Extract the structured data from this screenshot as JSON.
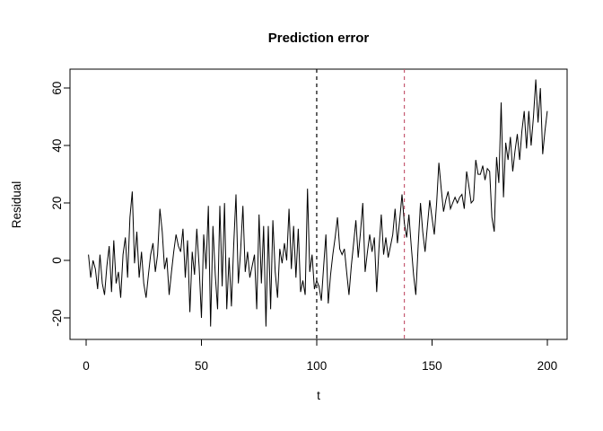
{
  "chart_data": {
    "type": "line",
    "title": "Prediction error",
    "xlabel": "t",
    "ylabel": "Residual",
    "x_ticks": [
      0,
      50,
      100,
      150,
      200
    ],
    "y_ticks": [
      -20,
      0,
      20,
      40,
      60
    ],
    "xlim": [
      -7.0,
      208.6
    ],
    "ylim": [
      -27.5,
      66.6
    ],
    "grid": false,
    "legend": null,
    "line_color": "#000000",
    "series": [
      {
        "name": "residuals",
        "color": "#000000",
        "x_start": 1,
        "x_step": 1,
        "values": [
          2,
          -6,
          0,
          -3,
          -10,
          2,
          -8,
          -12,
          -2,
          5,
          -11,
          7,
          -8,
          -4,
          -13,
          2,
          8,
          -6,
          15,
          24,
          -1,
          10,
          -6,
          3,
          -8,
          -13,
          -5,
          2,
          6,
          -4,
          2,
          18,
          10,
          -3,
          1,
          -12,
          -4,
          3,
          9,
          5,
          3,
          11,
          -6,
          7,
          -18,
          3,
          -5,
          11,
          -2,
          -20,
          9,
          -3,
          19,
          -23,
          12,
          -5,
          -17,
          19,
          -9,
          20,
          -17,
          1,
          -16,
          5,
          23,
          -8,
          3,
          19,
          -4,
          3,
          -6,
          -2,
          2,
          -17,
          16,
          -8,
          12,
          -23,
          12,
          -17,
          14,
          -4,
          -13,
          4,
          -1,
          6,
          0,
          18,
          -3,
          12,
          -6,
          11,
          -11,
          -7,
          -12,
          25,
          -4,
          2,
          -10,
          -7,
          -9,
          -14,
          -2,
          9,
          -15,
          -5,
          2,
          8,
          15,
          4,
          2,
          4,
          -4,
          -12,
          -2,
          6,
          14,
          1,
          10,
          20,
          -4,
          3,
          9,
          3,
          8,
          -11,
          4,
          16,
          2,
          8,
          1,
          5,
          9,
          18,
          6,
          14,
          23,
          13,
          8,
          16,
          5,
          -5,
          -12,
          5,
          20,
          10,
          3,
          12,
          21,
          15,
          9,
          20,
          34,
          25,
          17,
          21,
          24,
          18,
          20,
          22,
          20,
          22,
          23,
          18,
          31,
          26,
          20,
          21,
          35,
          30,
          30,
          33,
          28,
          32,
          31,
          15,
          10,
          36,
          27,
          55,
          22,
          41,
          35,
          43,
          31,
          38,
          44,
          35,
          45,
          52,
          39,
          52,
          40,
          50,
          63,
          48,
          60,
          37,
          45,
          52
        ]
      }
    ],
    "vlines": [
      {
        "x": 100,
        "color": "#000000",
        "style": "dashed",
        "name": "vline-t100-black-dashed"
      },
      {
        "x": 138,
        "color": "#C65B72",
        "style": "dashed",
        "name": "vline-t138-pink-dashed"
      }
    ]
  }
}
